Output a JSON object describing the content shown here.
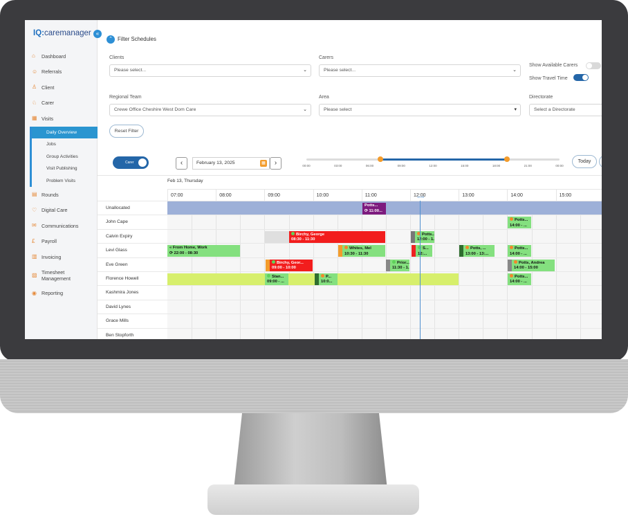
{
  "app": {
    "logo_prefix": "IQ:",
    "logo_name": "caremanager"
  },
  "sidebar": {
    "items": [
      {
        "label": "Dashboard",
        "icon": "home-icon"
      },
      {
        "label": "Referrals",
        "icon": "users-icon"
      },
      {
        "label": "Client",
        "icon": "user-icon"
      },
      {
        "label": "Carer",
        "icon": "carer-icon"
      },
      {
        "label": "Visits",
        "icon": "calendar-icon"
      }
    ],
    "visits_sub": [
      "Daily Overview",
      "Jobs",
      "Group Activities",
      "Visit Publishing",
      "Problem Visits"
    ],
    "items2": [
      {
        "label": "Rounds",
        "icon": "rounds-icon"
      },
      {
        "label": "Digital Care",
        "icon": "heart-icon"
      },
      {
        "label": "Communications",
        "icon": "communications-icon"
      },
      {
        "label": "Payroll",
        "icon": "payroll-icon"
      },
      {
        "label": "Invoicing",
        "icon": "invoice-icon"
      },
      {
        "label": "Timesheet Management",
        "icon": "timesheet-icon"
      },
      {
        "label": "Reporting",
        "icon": "reporting-icon"
      }
    ]
  },
  "filters": {
    "title": "Filter Schedules",
    "clients_label": "Clients",
    "clients_value": "Please select...",
    "carers_label": "Carers",
    "carers_value": "Please select...",
    "show_available": "Show Available Carers",
    "show_travel": "Show Travel Time",
    "regional_label": "Regional Team",
    "regional_value": "Crewe Office Cheshire West Dom Care",
    "area_label": "Area",
    "area_value": "Please select",
    "directorate_label": "Directorate",
    "directorate_value": "Select a Directorate",
    "reset": "Reset Filter"
  },
  "toolbar": {
    "view_toggle": "Carer",
    "date": "February 13, 2025",
    "today": "Today",
    "range_ticks": [
      "00:00",
      "03:00",
      "06:00",
      "09:00",
      "12:00",
      "15:00",
      "18:00",
      "21:00",
      "00:00"
    ],
    "range_start_hour": 7,
    "range_end_hour": 19
  },
  "schedule": {
    "day_header": "Feb 13, Thursday",
    "hours": [
      "07:00",
      "08:00",
      "09:00",
      "10:00",
      "11:00",
      "12:00",
      "13:00",
      "14:00",
      "15:00"
    ],
    "now_label": "12:03",
    "rows": [
      "Unallocated",
      "John Cape",
      "Calvin Expiry",
      "Levi Glass",
      "Eve Green",
      "Florence Howell",
      "Kashmira Jones",
      "David Lynes",
      "Grace Mills",
      "Ben Stopforth"
    ],
    "events": {
      "e1": {
        "title": "Potts...",
        "time": "11:00..."
      },
      "e2": {
        "title": "Potts...",
        "time": "14:00 - ..."
      },
      "e3": {
        "title": "Birchy, George",
        "time": "08:30 - 11:30"
      },
      "e4": {
        "title": "Potts...",
        "time": "12:00 - 1..."
      },
      "e5": {
        "title": "From Home, Work",
        "time": "22:00 - 08:30"
      },
      "e6": {
        "title": "Whites, Mel",
        "time": "10:30 - 11:30"
      },
      "e7": {
        "title": "S...",
        "time": "12:..."
      },
      "e8": {
        "title": "Potts, ...",
        "time": "13:00 - 13:..."
      },
      "e9": {
        "title": "Potts...",
        "time": "14:00 - ..."
      },
      "e10": {
        "title": "Birchy, Geor...",
        "time": "09:00 - 10:00"
      },
      "e11": {
        "title": "Prior...",
        "time": "11:30 - 1..."
      },
      "e12": {
        "title": "Potts, Andrea",
        "time": "14:00 - 15:00"
      },
      "e13": {
        "title": "Stan...",
        "time": "09:00 - ..."
      },
      "e14": {
        "title": "P...",
        "time": "10:0..."
      },
      "e15": {
        "title": "Potts...",
        "time": "14:00 - ..."
      }
    }
  }
}
